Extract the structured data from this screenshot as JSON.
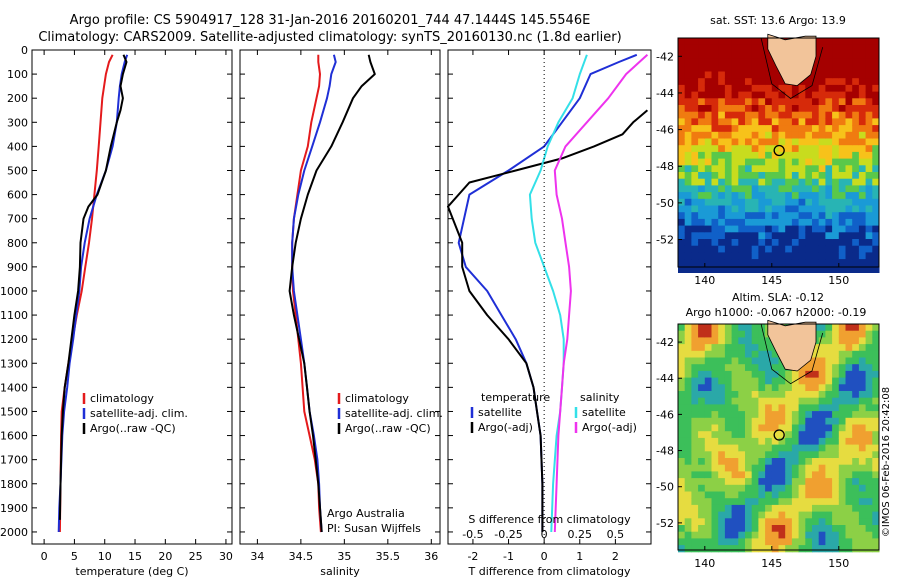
{
  "header": {
    "line1": "Argo profile: CS 5904917_128 31-Jan-2016 20160201_744 47.1444S 145.5546E",
    "line2": "Climatology: CARS2009. Satellite-adjusted climatology: synTS_20160130.nc (1.8d earlier)"
  },
  "colors": {
    "climatology": "#e41a1c",
    "satellite": "#1f2fd6",
    "argo": "#000000",
    "satellite_s": "#33e0e8",
    "argo_s": "#ee33ee",
    "land": "#f2c49a"
  },
  "chart_data": [
    {
      "id": "temperature",
      "type": "line",
      "xlabel": "temperature (deg C)",
      "ylabel": "",
      "xlim": [
        -2,
        31
      ],
      "ylim": [
        2050,
        0
      ],
      "xticks": [
        "0",
        "5",
        "10",
        "15",
        "20",
        "25",
        "30"
      ],
      "xtick_values": [
        0,
        5,
        10,
        15,
        20,
        25,
        30
      ],
      "yticks": [
        "0",
        "100",
        "200",
        "300",
        "400",
        "500",
        "600",
        "700",
        "800",
        "900",
        "1000",
        "1100",
        "1200",
        "1300",
        "1400",
        "1500",
        "1600",
        "1700",
        "1800",
        "1900",
        "2000"
      ],
      "ytick_values": [
        0,
        100,
        200,
        300,
        400,
        500,
        600,
        700,
        800,
        900,
        1000,
        1100,
        1200,
        1300,
        1400,
        1500,
        1600,
        1700,
        1800,
        1900,
        2000
      ],
      "legend": [
        "climatology",
        "satellite-adj. clim.",
        "Argo(..raw -QC)"
      ],
      "series": [
        {
          "name": "climatology",
          "color": "#e41a1c",
          "x": [
            11.3,
            10.7,
            10.2,
            9.9,
            9.6,
            9.3,
            9.0,
            8.7,
            8.3,
            7.9,
            7.4,
            6.8,
            6.2,
            5.4,
            4.7,
            4.0,
            3.4,
            2.9,
            2.8,
            2.7,
            2.65,
            2.6
          ],
          "y": [
            20,
            50,
            100,
            150,
            200,
            300,
            400,
            500,
            600,
            700,
            800,
            900,
            1000,
            1100,
            1200,
            1300,
            1400,
            1500,
            1600,
            1800,
            1900,
            2000
          ]
        },
        {
          "name": "satellite-adj. clim.",
          "color": "#1f2fd6",
          "x": [
            13.7,
            13.3,
            12.8,
            12.5,
            12.3,
            12.0,
            11.3,
            10.2,
            8.7,
            7.5,
            6.7,
            6.1,
            5.8,
            5.3,
            4.8,
            4.2,
            3.8,
            3.3,
            3.0,
            2.7,
            2.5,
            2.4
          ],
          "y": [
            20,
            50,
            100,
            150,
            200,
            300,
            400,
            500,
            600,
            700,
            800,
            900,
            1000,
            1100,
            1200,
            1300,
            1400,
            1500,
            1600,
            1800,
            1900,
            2000
          ]
        },
        {
          "name": "Argo(..raw -QC)",
          "color": "#000000",
          "x": [
            13.1,
            13.6,
            13.0,
            12.6,
            13.0,
            12.6,
            12.0,
            11.0,
            10.2,
            8.8,
            7.3,
            6.5,
            6.0,
            5.9,
            5.6,
            5.0,
            4.5,
            4.0,
            3.4,
            3.1,
            2.9,
            2.8,
            2.7,
            2.6
          ],
          "y": [
            20,
            50,
            100,
            150,
            200,
            250,
            300,
            400,
            500,
            600,
            650,
            700,
            800,
            900,
            1000,
            1100,
            1200,
            1300,
            1400,
            1500,
            1600,
            1700,
            1800,
            1950
          ]
        }
      ]
    },
    {
      "id": "salinity",
      "type": "line",
      "xlabel": "salinity",
      "ylabel": "",
      "xlim": [
        33.8,
        36.1
      ],
      "ylim": [
        2050,
        0
      ],
      "xticks": [
        "34",
        "34.5",
        "35",
        "35.5",
        "36"
      ],
      "xtick_values": [
        34,
        34.5,
        35,
        35.5,
        36
      ],
      "legend": [
        "climatology",
        "satellite-adj. clim.",
        "Argo(..raw -QC)"
      ],
      "annotations": [
        "Argo Australia",
        "PI: Susan Wijffels"
      ],
      "series": [
        {
          "name": "climatology",
          "color": "#e41a1c",
          "x": [
            34.7,
            34.7,
            34.72,
            34.71,
            34.68,
            34.62,
            34.58,
            34.5,
            34.46,
            34.42,
            34.4,
            34.4,
            34.41,
            34.44,
            34.47,
            34.5,
            34.52,
            34.54,
            34.6,
            34.66,
            34.7,
            34.71,
            34.73
          ],
          "y": [
            20,
            50,
            100,
            150,
            200,
            300,
            400,
            500,
            600,
            700,
            800,
            900,
            1000,
            1100,
            1200,
            1300,
            1400,
            1500,
            1600,
            1700,
            1800,
            1900,
            2000
          ]
        },
        {
          "name": "satellite-adj. clim.",
          "color": "#1f2fd6",
          "x": [
            34.88,
            34.9,
            34.85,
            34.83,
            34.8,
            34.72,
            34.63,
            34.54,
            34.47,
            34.42,
            34.4,
            34.4,
            34.42,
            34.46,
            34.5,
            34.54,
            34.57,
            34.6,
            34.65,
            34.69,
            34.71,
            34.72,
            34.74
          ],
          "y": [
            20,
            50,
            100,
            150,
            200,
            300,
            400,
            500,
            600,
            700,
            800,
            900,
            1000,
            1100,
            1200,
            1300,
            1400,
            1500,
            1600,
            1700,
            1800,
            1900,
            2000
          ]
        },
        {
          "name": "Argo(..raw -QC)",
          "color": "#000000",
          "x": [
            35.28,
            35.3,
            35.35,
            35.2,
            35.1,
            34.98,
            34.85,
            34.68,
            34.58,
            34.5,
            34.44,
            34.4,
            34.37,
            34.42,
            34.48,
            34.54,
            34.57,
            34.6,
            34.64,
            34.67,
            34.7,
            34.72,
            34.74
          ],
          "y": [
            20,
            50,
            100,
            150,
            200,
            300,
            400,
            500,
            600,
            700,
            800,
            900,
            1000,
            1100,
            1200,
            1300,
            1400,
            1500,
            1600,
            1700,
            1800,
            1900,
            2000
          ]
        }
      ]
    },
    {
      "id": "difference",
      "type": "line",
      "xlabel": "T difference from climatology",
      "xlabel_top": "S difference from climatology",
      "xlim": [
        -2.7,
        3.0
      ],
      "ylim": [
        2050,
        0
      ],
      "xticks": [
        "-2",
        "-1",
        "0",
        "1",
        "2"
      ],
      "xtick_values": [
        -2,
        -1,
        0,
        1,
        2
      ],
      "s_ticks": [
        "-0.5",
        "-0.25",
        "0",
        "0.25",
        "0.5"
      ],
      "s_tick_values": [
        -0.5,
        -0.25,
        0,
        0.25,
        0.5
      ],
      "legend_t_title": "temperature",
      "legend_s_title": "salinity",
      "legend_t": [
        "satellite",
        "Argo(-adj)"
      ],
      "legend_s": [
        "satellite",
        "Argo(-adj)"
      ],
      "series": [
        {
          "name": "satellite",
          "group": "temperature",
          "color": "#1f2fd6",
          "x": [
            2.6,
            2.1,
            1.3,
            1.0,
            0.5,
            0.0,
            -1.0,
            -2.1,
            -2.4,
            -2.2,
            -1.6,
            -1.2,
            -0.8,
            -0.5,
            -0.3,
            -0.2,
            -0.1,
            -0.05,
            -0.05
          ],
          "y": [
            20,
            50,
            100,
            200,
            300,
            400,
            500,
            600,
            800,
            900,
            1000,
            1100,
            1200,
            1300,
            1400,
            1500,
            1600,
            1800,
            2000
          ]
        },
        {
          "name": "Argo(-adj)",
          "group": "temperature",
          "color": "#000000",
          "x": [
            2.9,
            2.5,
            2.2,
            1.4,
            0.5,
            -0.8,
            -2.1,
            -2.7,
            -2.3,
            -2.3,
            -2.1,
            -1.6,
            -1.0,
            -0.5,
            -0.3,
            -0.2,
            -0.1,
            -0.05,
            -0.05
          ],
          "y": [
            250,
            300,
            350,
            400,
            450,
            500,
            550,
            650,
            800,
            900,
            1000,
            1100,
            1200,
            1300,
            1400,
            1500,
            1600,
            1800,
            2000
          ]
        },
        {
          "name": "satellite",
          "group": "salinity",
          "color": "#33e0e8",
          "x": [
            1.2,
            1.0,
            0.8,
            0.4,
            0.1,
            -0.1,
            -0.4,
            -0.35,
            -0.25,
            0.0,
            0.25,
            0.45,
            0.55,
            0.55,
            0.5,
            0.45,
            0.35,
            0.25,
            0.2
          ],
          "y": [
            20,
            100,
            200,
            300,
            400,
            500,
            600,
            700,
            800,
            900,
            1000,
            1100,
            1200,
            1300,
            1400,
            1500,
            1600,
            1800,
            2000
          ]
        },
        {
          "name": "Argo(-adj)",
          "group": "salinity",
          "color": "#ee33ee",
          "x": [
            2.9,
            2.3,
            1.8,
            1.2,
            0.6,
            0.3,
            0.35,
            0.5,
            0.6,
            0.7,
            0.75,
            0.7,
            0.65,
            0.55,
            0.5,
            0.45,
            0.4,
            0.35,
            0.3
          ],
          "y": [
            20,
            100,
            200,
            300,
            400,
            500,
            600,
            700,
            800,
            900,
            1000,
            1100,
            1200,
            1300,
            1400,
            1500,
            1600,
            1800,
            2000
          ]
        }
      ]
    },
    {
      "id": "sst-map",
      "type": "heatmap",
      "title": "sat. SST: 13.6 Argo: 13.9",
      "xlim": [
        138,
        153
      ],
      "ylim": [
        -53.5,
        -41
      ],
      "xticks": [
        "140",
        "145",
        "150"
      ],
      "xtick_values": [
        140,
        145,
        150
      ],
      "yticks": [
        "-42",
        "-44",
        "-46",
        "-48",
        "-50",
        "-52"
      ],
      "ytick_values": [
        -42,
        -44,
        -46,
        -48,
        -50,
        -52
      ],
      "argo_position": [
        145.55,
        -47.14
      ]
    },
    {
      "id": "sla-map",
      "type": "heatmap",
      "title": "Altim. SLA: -0.12",
      "subtitle": "Argo h1000: -0.067 h2000: -0.19",
      "xlim": [
        138,
        153
      ],
      "ylim": [
        -53.5,
        -41
      ],
      "xticks": [
        "140",
        "145",
        "150"
      ],
      "xtick_values": [
        140,
        145,
        150
      ],
      "yticks": [
        "-42",
        "-44",
        "-46",
        "-48",
        "-50",
        "-52"
      ],
      "ytick_values": [
        -42,
        -44,
        -46,
        -48,
        -50,
        -52
      ],
      "argo_position": [
        145.55,
        -47.14
      ]
    }
  ],
  "footer": {
    "copyright": "©IMOS 06-Feb-2016 20:42:08"
  }
}
